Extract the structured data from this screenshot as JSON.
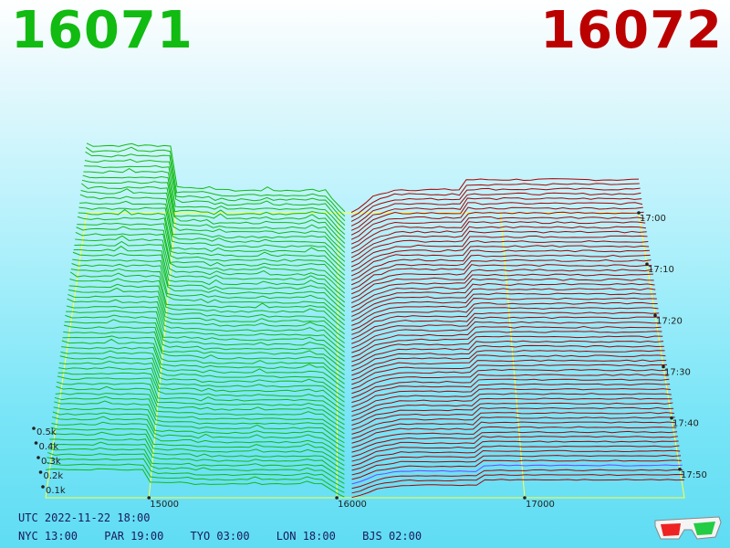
{
  "header": {
    "bid_price": "16071",
    "ask_price": "16072",
    "bid_color": "#11bb11",
    "ask_color": "#bb0000"
  },
  "chart_data": {
    "type": "area",
    "description_kind": "3D order-book depth history (waterfall)",
    "x_axis": {
      "ticks": [
        "15000",
        "16000",
        "17000"
      ],
      "range": [
        14450,
        17850
      ]
    },
    "y_axis": {
      "ticks": [
        "0.1k",
        "0.2k",
        "0.3k",
        "0.4k",
        "0.5k"
      ]
    },
    "time_axis": {
      "ticks": [
        "17:00",
        "17:10",
        "17:20",
        "17:30",
        "17:40",
        "17:50"
      ]
    },
    "series": [
      {
        "side": "bid",
        "color": "#11bb11"
      },
      {
        "side": "ask",
        "color": "#aa0000"
      },
      {
        "side": "ask-latest",
        "color": "#7744ff"
      }
    ],
    "grid_color": "#ffff44",
    "snapshots": 64
  },
  "footer": {
    "utc": "UTC 2022-11-22 18:00",
    "clocks": [
      "NYC 13:00",
      "PAR 19:00",
      "TYO 03:00",
      "LON 18:00",
      "BJS 02:00"
    ]
  },
  "icons": {
    "glasses": "3d-glasses-icon"
  }
}
